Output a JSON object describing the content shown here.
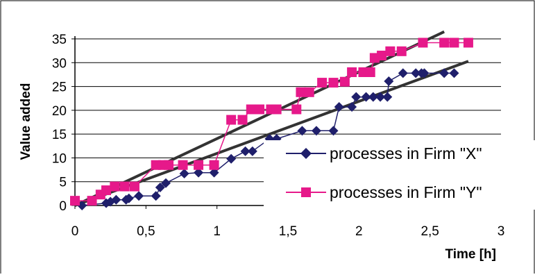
{
  "chart_data": {
    "type": "line",
    "title": "",
    "xlabel": "Time [h]",
    "ylabel": "Value  added",
    "xlim": [
      0,
      3
    ],
    "ylim": [
      0,
      35
    ],
    "x_ticks": [
      0,
      0.5,
      1,
      1.5,
      2,
      2.5,
      3
    ],
    "x_tick_labels": [
      "0",
      "0,5",
      "1",
      "1,5",
      "2",
      "2,5",
      "3"
    ],
    "y_ticks": [
      0,
      5,
      10,
      15,
      20,
      25,
      30,
      35
    ],
    "y_tick_labels": [
      "0",
      "5",
      "10",
      "15",
      "20",
      "25",
      "30",
      "35"
    ],
    "grid": "horizontal",
    "legend_position": "bottom-right",
    "series": [
      {
        "name": "processes in Firm \"X\"",
        "color": "#1f1f6b",
        "marker": "diamond",
        "points": [
          [
            0.05,
            0
          ],
          [
            0.22,
            0.5
          ],
          [
            0.25,
            0.8
          ],
          [
            0.29,
            1.2
          ],
          [
            0.36,
            1.2
          ],
          [
            0.38,
            1.5
          ],
          [
            0.45,
            2
          ],
          [
            0.57,
            2
          ],
          [
            0.6,
            3.8
          ],
          [
            0.64,
            4.7
          ],
          [
            0.77,
            6.7
          ],
          [
            0.87,
            6.9
          ],
          [
            0.98,
            6.9
          ],
          [
            1.1,
            9.8
          ],
          [
            1.2,
            11.4
          ],
          [
            1.25,
            11.4
          ],
          [
            1.37,
            14
          ],
          [
            1.42,
            14
          ],
          [
            1.6,
            15.7
          ],
          [
            1.7,
            15.7
          ],
          [
            1.82,
            15.7
          ],
          [
            1.86,
            20.7
          ],
          [
            1.95,
            20.7
          ],
          [
            1.98,
            22.8
          ],
          [
            2.05,
            22.8
          ],
          [
            2.1,
            22.8
          ],
          [
            2.15,
            22.8
          ],
          [
            2.2,
            22.8
          ],
          [
            2.21,
            26.1
          ],
          [
            2.31,
            27.8
          ],
          [
            2.4,
            27.8
          ],
          [
            2.44,
            27.8
          ],
          [
            2.46,
            27.8
          ],
          [
            2.6,
            27.8
          ],
          [
            2.67,
            27.8
          ]
        ]
      },
      {
        "name": "processes in Firm \"Y\"",
        "color": "#e6198a",
        "marker": "square",
        "points": [
          [
            0,
            1
          ],
          [
            0.12,
            1
          ],
          [
            0.18,
            2.3
          ],
          [
            0.22,
            3.2
          ],
          [
            0.28,
            4
          ],
          [
            0.35,
            4
          ],
          [
            0.42,
            4
          ],
          [
            0.57,
            8.5
          ],
          [
            0.62,
            8.5
          ],
          [
            0.66,
            8.5
          ],
          [
            0.76,
            8.5
          ],
          [
            0.87,
            8.5
          ],
          [
            0.98,
            8.5
          ],
          [
            1.1,
            18
          ],
          [
            1.18,
            18
          ],
          [
            1.24,
            20.2
          ],
          [
            1.3,
            20.2
          ],
          [
            1.38,
            20.2
          ],
          [
            1.42,
            20.2
          ],
          [
            1.56,
            20.2
          ],
          [
            1.59,
            23.8
          ],
          [
            1.65,
            23.8
          ],
          [
            1.74,
            25.8
          ],
          [
            1.82,
            25.8
          ],
          [
            1.9,
            26
          ],
          [
            1.95,
            28
          ],
          [
            2.03,
            28
          ],
          [
            2.08,
            28
          ],
          [
            2.11,
            31
          ],
          [
            2.16,
            31.5
          ],
          [
            2.22,
            32.4
          ],
          [
            2.3,
            32.4
          ],
          [
            2.45,
            34.2
          ],
          [
            2.6,
            34.2
          ],
          [
            2.67,
            34.2
          ],
          [
            2.77,
            34.2
          ]
        ]
      }
    ],
    "trend_lines": [
      {
        "color": "#333333",
        "from": [
          0,
          0
        ],
        "to": [
          2.77,
          30.3
        ]
      },
      {
        "color": "#333333",
        "from": [
          0,
          0
        ],
        "to": [
          2.6,
          36.5
        ]
      }
    ]
  }
}
